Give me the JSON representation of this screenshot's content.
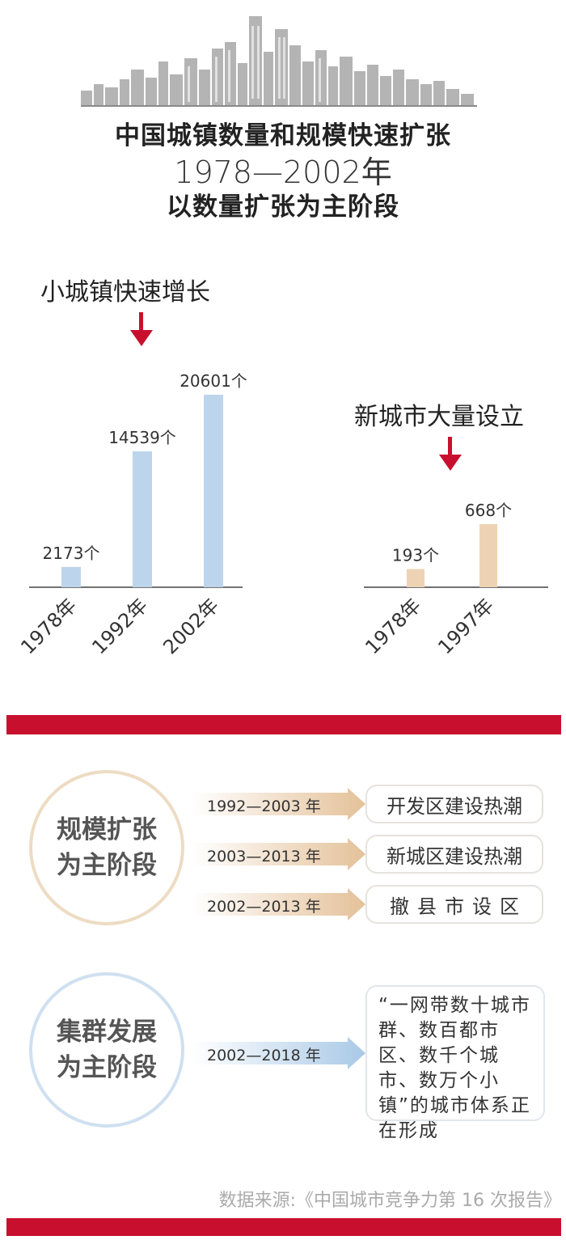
{
  "header": {
    "title": "中国城镇数量和规模快速扩张",
    "period": "1978—2002年",
    "stage": "以数量扩张为主阶段"
  },
  "chart_data": [
    {
      "type": "bar",
      "title": "小城镇快速增长",
      "categories": [
        "1978年",
        "1992年",
        "2002年"
      ],
      "values": [
        2173,
        14539,
        20601
      ],
      "value_labels": [
        "2173个",
        "14539个",
        "20601个"
      ],
      "color": "#bcd5ec"
    },
    {
      "type": "bar",
      "title": "新城市大量设立",
      "categories": [
        "1978年",
        "1997年"
      ],
      "values": [
        193,
        668
      ],
      "value_labels": [
        "193个",
        "668个"
      ],
      "color": "#edd3b3"
    }
  ],
  "stages": [
    {
      "label_line1": "规模扩张",
      "label_line2": "为主阶段",
      "items": [
        {
          "period": "1992—2003 年",
          "event": "开发区建设热潮"
        },
        {
          "period": "2003—2013 年",
          "event": "新城区建设热潮"
        },
        {
          "period": "2002—2013 年",
          "event": "撤县市设区"
        }
      ]
    },
    {
      "label_line1": "集群发展",
      "label_line2": "为主阶段",
      "items": [
        {
          "period": "2002—2018 年",
          "event": "“一网带数十城市群、数百都市区、数千个城市、数万个小镇”的城市体系正在形成"
        }
      ]
    }
  ],
  "source": "数据来源:《中国城市竞争力第 16 次报告》",
  "colors": {
    "accent_red": "#c8102e",
    "bar_blue": "#bcd5ec",
    "bar_tan": "#edd3b3",
    "arrow_tan": "#e4c199",
    "arrow_blue": "#a9c9e6"
  }
}
